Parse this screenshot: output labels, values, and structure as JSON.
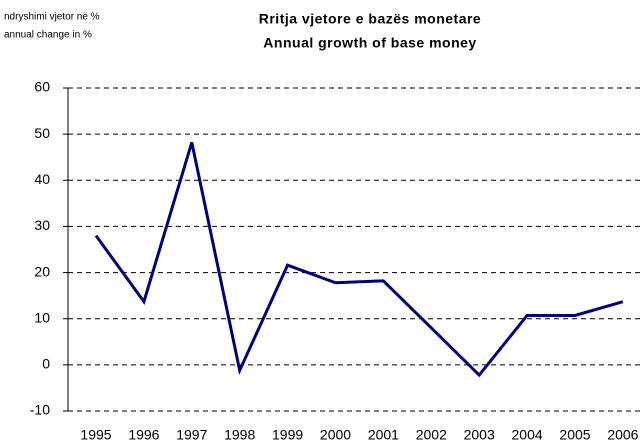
{
  "chart_data": {
    "type": "line",
    "title": [
      "Rritja vjetore e bazës monetare",
      "Annual growth of base money"
    ],
    "y_axis_label": [
      "ndryshimi vjetor në %",
      "annual change in %"
    ],
    "categories": [
      "1995",
      "1996",
      "1997",
      "1998",
      "1999",
      "2000",
      "2001",
      "2002",
      "2003",
      "2004",
      "2005",
      "2006"
    ],
    "values": [
      28,
      13.7,
      48.2,
      -1.2,
      21.6,
      17.8,
      18.2,
      8,
      -2.2,
      10.7,
      10.7,
      13.7
    ],
    "color": "#000080",
    "ylim": [
      -10,
      60
    ],
    "yticks": [
      -10,
      0,
      10,
      20,
      30,
      40,
      50,
      60
    ],
    "grid": true
  }
}
